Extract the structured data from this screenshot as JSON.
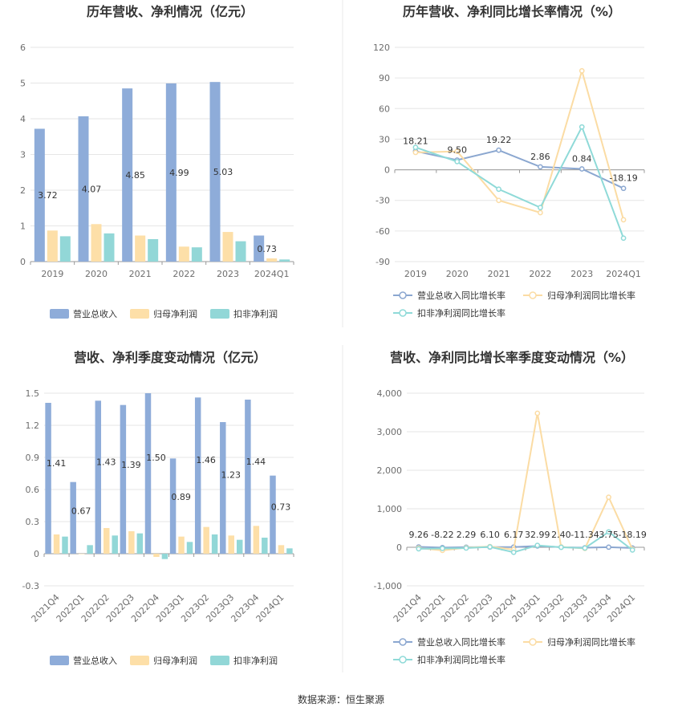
{
  "source_text": "数据来源：恒生聚源",
  "colors": {
    "revenue": "#8eacd9",
    "netprofit": "#fddfa8",
    "deducted": "#92d7d7",
    "revenue_line": "#8ba7d0",
    "netprofit_line": "#fbdca4",
    "deducted_line": "#8fdad8",
    "grid": "#e6e6e6",
    "axis": "#999999"
  },
  "chart_data": [
    {
      "type": "bar",
      "title": "历年营收、净利情况（亿元）",
      "categories": [
        "2019",
        "2020",
        "2021",
        "2022",
        "2023",
        "2024Q1"
      ],
      "ylim": [
        0,
        6
      ],
      "yticks": [
        "0",
        "1",
        "2",
        "3",
        "4",
        "5",
        "6"
      ],
      "series": [
        {
          "name": "营业总收入",
          "values": [
            3.72,
            4.07,
            4.85,
            4.99,
            5.03,
            0.73
          ],
          "labels": [
            "3.72",
            "4.07",
            "4.85",
            "4.99",
            "5.03",
            "0.73"
          ]
        },
        {
          "name": "归母净利润",
          "values": [
            0.87,
            1.05,
            0.73,
            0.42,
            0.83,
            0.09
          ]
        },
        {
          "name": "扣非净利润",
          "values": [
            0.71,
            0.79,
            0.63,
            0.4,
            0.57,
            0.06
          ]
        }
      ],
      "grid": true,
      "legend": "bottom"
    },
    {
      "type": "line",
      "title": "历年营收、净利同比增长率情况（%）",
      "categories": [
        "2019",
        "2020",
        "2021",
        "2022",
        "2023",
        "2024Q1"
      ],
      "ylim": [
        -90,
        120
      ],
      "yticks": [
        "-90",
        "-60",
        "-30",
        "0",
        "30",
        "60",
        "90",
        "120"
      ],
      "series": [
        {
          "name": "营业总收入同比增长率",
          "values": [
            18.21,
            9.5,
            19.22,
            2.86,
            0.84,
            -18.19
          ],
          "labels": [
            "18.21",
            "9.50",
            "19.22",
            "2.86",
            "0.84",
            "-18.19"
          ]
        },
        {
          "name": "归母净利润同比增长率",
          "values": [
            17,
            18,
            -30,
            -42,
            97,
            -49
          ]
        },
        {
          "name": "扣非净利润同比增长率",
          "values": [
            22,
            8,
            -19,
            -37,
            42,
            -67
          ]
        }
      ],
      "grid": true,
      "legend": "bottom"
    },
    {
      "type": "bar",
      "title": "营收、净利季度变动情况（亿元）",
      "categories": [
        "2021Q4",
        "2022Q1",
        "2022Q2",
        "2022Q3",
        "2022Q4",
        "2023Q1",
        "2023Q2",
        "2023Q3",
        "2023Q4",
        "2024Q1"
      ],
      "ylim": [
        -0.3,
        1.5
      ],
      "yticks": [
        "-0.3",
        "0",
        "0.3",
        "0.6",
        "0.9",
        "1.2",
        "1.5"
      ],
      "series": [
        {
          "name": "营业总收入",
          "values": [
            1.41,
            0.67,
            1.43,
            1.39,
            1.5,
            0.89,
            1.46,
            1.23,
            1.44,
            0.73
          ],
          "labels": [
            "1.41",
            "0.67",
            "1.43",
            "1.39",
            "1.50",
            "0.89",
            "1.46",
            "1.23",
            "1.44",
            "0.73"
          ]
        },
        {
          "name": "归母净利润",
          "values": [
            0.18,
            0.0,
            0.24,
            0.21,
            -0.03,
            0.16,
            0.25,
            0.17,
            0.26,
            0.08
          ]
        },
        {
          "name": "扣非净利润",
          "values": [
            0.16,
            0.08,
            0.17,
            0.19,
            -0.05,
            0.11,
            0.18,
            0.13,
            0.15,
            0.05
          ]
        }
      ],
      "grid": true,
      "legend": "bottom"
    },
    {
      "type": "line",
      "title": "营收、净利同比增长率季度变动情况（%）",
      "categories": [
        "2021Q4",
        "2022Q1",
        "2022Q2",
        "2022Q3",
        "2022Q4",
        "2023Q1",
        "2023Q2",
        "2023Q3",
        "2023Q4",
        "2024Q1"
      ],
      "ylim": [
        -1000,
        4000
      ],
      "yticks": [
        "-1,000",
        "0",
        "1,000",
        "2,000",
        "3,000",
        "4,000"
      ],
      "series": [
        {
          "name": "营业总收入同比增长率",
          "values": [
            9.26,
            -8.22,
            2.29,
            6.1,
            6.17,
            32.99,
            2.4,
            -11.34,
            3.75,
            -18.19
          ],
          "labels": [
            "9.26",
            "-8.22",
            "2.29",
            "6.10",
            "6.17",
            "32.99",
            "2.40",
            "-11.34",
            "3.75",
            "-18.19"
          ]
        },
        {
          "name": "归母净利润同比增长率",
          "values": [
            -20,
            -80,
            -10,
            20,
            -60,
            3480,
            10,
            -30,
            1300,
            -50
          ]
        },
        {
          "name": "扣非净利润同比增长率",
          "values": [
            -40,
            -30,
            -20,
            10,
            -130,
            50,
            0,
            -20,
            400,
            -70
          ]
        }
      ],
      "grid": true,
      "legend": "bottom"
    }
  ]
}
